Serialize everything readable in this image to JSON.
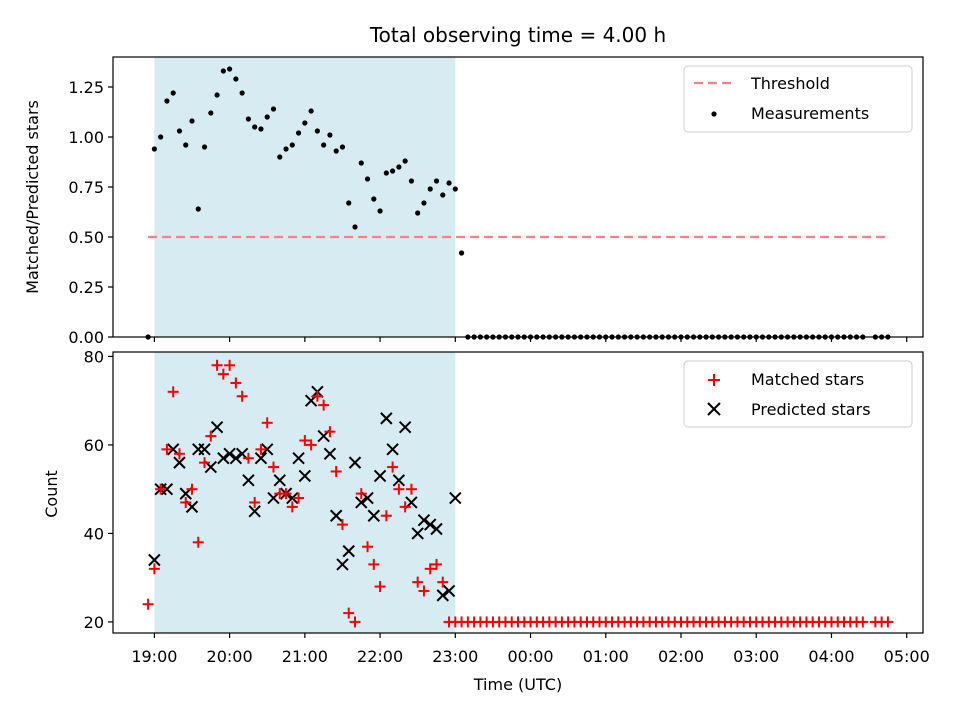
{
  "chart_data": {
    "title": "Total observing time = 4.00 h",
    "x_unit": "Time (UTC)",
    "xlabel": "Time (UTC)",
    "xlim": [
      "18:27",
      "05:13"
    ],
    "xticks": [
      "19:00",
      "20:00",
      "21:00",
      "22:00",
      "23:00",
      "00:00",
      "01:00",
      "02:00",
      "03:00",
      "04:00",
      "05:00"
    ],
    "shaded_interval": [
      "19:00",
      "23:00"
    ],
    "colors": {
      "shade": "#add8e6",
      "threshold": "#ff7f7f",
      "measurements": "#000000",
      "matched": "#ff0000",
      "predicted": "#000000"
    },
    "top": {
      "type": "scatter",
      "ylabel": "Matched/Predicted stars",
      "ylim": [
        0,
        1.4
      ],
      "yticks": [
        "0.00",
        "0.25",
        "0.50",
        "0.75",
        "1.00",
        "1.25"
      ],
      "legend_position": "top-right",
      "threshold": {
        "name": "Threshold",
        "value": 0.5,
        "from": "18:55",
        "to": "04:45"
      },
      "series": [
        {
          "name": "Measurements",
          "x": [
            "18:55",
            "19:00",
            "19:05",
            "19:10",
            "19:15",
            "19:20",
            "19:25",
            "19:30",
            "19:35",
            "19:40",
            "19:45",
            "19:50",
            "19:55",
            "20:00",
            "20:05",
            "20:10",
            "20:15",
            "20:20",
            "20:25",
            "20:30",
            "20:35",
            "20:40",
            "20:45",
            "20:50",
            "20:55",
            "21:00",
            "21:05",
            "21:10",
            "21:15",
            "21:20",
            "21:25",
            "21:30",
            "21:35",
            "21:40",
            "21:45",
            "21:50",
            "21:55",
            "22:00",
            "22:05",
            "22:10",
            "22:15",
            "22:20",
            "22:25",
            "22:30",
            "22:35",
            "22:40",
            "22:45",
            "22:50",
            "22:55",
            "23:00",
            "23:05",
            "23:10",
            "23:15",
            "23:20",
            "23:25",
            "23:30",
            "23:35",
            "23:40",
            "23:45",
            "23:50",
            "23:55",
            "00:00",
            "00:05",
            "00:10",
            "00:15",
            "00:20",
            "00:25",
            "00:30",
            "00:35",
            "00:40",
            "00:45",
            "00:50",
            "00:55",
            "01:00",
            "01:05",
            "01:10",
            "01:15",
            "01:20",
            "01:25",
            "01:30",
            "01:35",
            "01:40",
            "01:45",
            "01:50",
            "01:55",
            "02:00",
            "02:05",
            "02:10",
            "02:15",
            "02:20",
            "02:25",
            "02:30",
            "02:35",
            "02:40",
            "02:45",
            "02:50",
            "02:55",
            "03:00",
            "03:05",
            "03:10",
            "03:15",
            "03:20",
            "03:25",
            "03:30",
            "03:35",
            "03:40",
            "03:45",
            "03:50",
            "03:55",
            "04:00",
            "04:05",
            "04:10",
            "04:15",
            "04:20",
            "04:25",
            "04:35",
            "04:40",
            "04:45"
          ],
          "y": [
            0.0,
            0.94,
            1.0,
            1.18,
            1.22,
            1.03,
            0.96,
            1.08,
            0.64,
            0.95,
            1.12,
            1.21,
            1.33,
            1.34,
            1.29,
            1.22,
            1.09,
            1.05,
            1.04,
            1.1,
            1.14,
            0.9,
            0.94,
            0.96,
            1.02,
            1.07,
            1.13,
            1.03,
            0.96,
            1.01,
            0.93,
            0.95,
            0.67,
            0.55,
            0.87,
            0.79,
            0.69,
            0.63,
            0.82,
            0.83,
            0.85,
            0.88,
            0.78,
            0.62,
            0.67,
            0.74,
            0.78,
            0.71,
            0.77,
            0.74,
            0.42,
            0.0,
            0.0,
            0.0,
            0.0,
            0.0,
            0.0,
            0.0,
            0.0,
            0.0,
            0.0,
            0.0,
            0.0,
            0.0,
            0.0,
            0.0,
            0.0,
            0.0,
            0.0,
            0.0,
            0.0,
            0.0,
            0.0,
            0.0,
            0.0,
            0.0,
            0.0,
            0.0,
            0.0,
            0.0,
            0.0,
            0.0,
            0.0,
            0.0,
            0.0,
            0.0,
            0.0,
            0.0,
            0.0,
            0.0,
            0.0,
            0.0,
            0.0,
            0.0,
            0.0,
            0.0,
            0.0,
            0.0,
            0.0,
            0.0,
            0.0,
            0.0,
            0.0,
            0.0,
            0.0,
            0.0,
            0.0,
            0.0,
            0.0,
            0.0,
            0.0,
            0.0,
            0.0,
            0.0,
            0.0,
            0.0,
            0.0,
            0.0
          ]
        }
      ]
    },
    "bottom": {
      "type": "scatter",
      "ylabel": "Count",
      "ylim": [
        17.5,
        81
      ],
      "yticks": [
        "20",
        "40",
        "60",
        "80"
      ],
      "legend_position": "top-right",
      "series": [
        {
          "name": "Matched stars",
          "marker": "+",
          "x": [
            "18:55",
            "19:00",
            "19:05",
            "19:10",
            "19:15",
            "19:20",
            "19:25",
            "19:30",
            "19:35",
            "19:40",
            "19:45",
            "19:50",
            "19:55",
            "20:00",
            "20:05",
            "20:10",
            "20:15",
            "20:20",
            "20:25",
            "20:30",
            "20:35",
            "20:40",
            "20:45",
            "20:50",
            "20:55",
            "21:00",
            "21:05",
            "21:10",
            "21:15",
            "21:20",
            "21:25",
            "21:30",
            "21:35",
            "21:40",
            "21:45",
            "21:50",
            "21:55",
            "22:00",
            "22:05",
            "22:10",
            "22:15",
            "22:20",
            "22:25",
            "22:30",
            "22:35",
            "22:40",
            "22:45",
            "22:50",
            "22:55",
            "23:00",
            "23:05",
            "23:10",
            "23:15",
            "23:20",
            "23:25",
            "23:30",
            "23:35",
            "23:40",
            "23:45",
            "23:50",
            "23:55",
            "00:00",
            "00:05",
            "00:10",
            "00:15",
            "00:20",
            "00:25",
            "00:30",
            "00:35",
            "00:40",
            "00:45",
            "00:50",
            "00:55",
            "01:00",
            "01:05",
            "01:10",
            "01:15",
            "01:20",
            "01:25",
            "01:30",
            "01:35",
            "01:40",
            "01:45",
            "01:50",
            "01:55",
            "02:00",
            "02:05",
            "02:10",
            "02:15",
            "02:20",
            "02:25",
            "02:30",
            "02:35",
            "02:40",
            "02:45",
            "02:50",
            "02:55",
            "03:00",
            "03:05",
            "03:10",
            "03:15",
            "03:20",
            "03:25",
            "03:30",
            "03:35",
            "03:40",
            "03:45",
            "03:50",
            "03:55",
            "04:00",
            "04:05",
            "04:10",
            "04:15",
            "04:20",
            "04:25",
            "04:35",
            "04:40",
            "04:45"
          ],
          "y": [
            24,
            32,
            50,
            59,
            72,
            58,
            47,
            50,
            38,
            56,
            62,
            78,
            76,
            78,
            74,
            71,
            57,
            47,
            59,
            65,
            55,
            49,
            49,
            46,
            48,
            61,
            60,
            71,
            69,
            63,
            54,
            42,
            22,
            20,
            49,
            37,
            33,
            28,
            44,
            55,
            50,
            46,
            50,
            29,
            27,
            32,
            33,
            29,
            20,
            20,
            20,
            20,
            20,
            20,
            20,
            20,
            20,
            20,
            20,
            20,
            20,
            20,
            20,
            20,
            20,
            20,
            20,
            20,
            20,
            20,
            20,
            20,
            20,
            20,
            20,
            20,
            20,
            20,
            20,
            20,
            20,
            20,
            20,
            20,
            20,
            20,
            20,
            20,
            20,
            20,
            20,
            20,
            20,
            20,
            20,
            20,
            20,
            20,
            20,
            20,
            20,
            20,
            20,
            20,
            20,
            20,
            20,
            20,
            20,
            20,
            20,
            20,
            20,
            20,
            20,
            20,
            20,
            20
          ]
        },
        {
          "name": "Predicted stars",
          "marker": "x",
          "x": [
            "19:00",
            "19:05",
            "19:10",
            "19:15",
            "19:20",
            "19:25",
            "19:30",
            "19:35",
            "19:40",
            "19:45",
            "19:50",
            "19:55",
            "20:00",
            "20:05",
            "20:10",
            "20:15",
            "20:20",
            "20:25",
            "20:30",
            "20:35",
            "20:40",
            "20:45",
            "20:50",
            "20:55",
            "21:00",
            "21:05",
            "21:10",
            "21:15",
            "21:20",
            "21:25",
            "21:30",
            "21:35",
            "21:40",
            "21:45",
            "21:50",
            "21:55",
            "22:00",
            "22:05",
            "22:10",
            "22:15",
            "22:20",
            "22:25",
            "22:30",
            "22:35",
            "22:40",
            "22:45",
            "22:50",
            "22:55",
            "23:00",
            "23:05"
          ],
          "y": [
            34,
            50,
            50,
            59,
            56,
            49,
            46,
            59,
            59,
            55,
            64,
            57,
            58,
            57,
            58,
            52,
            45,
            57,
            59,
            48,
            52,
            49,
            48,
            57,
            53,
            70,
            72,
            62,
            58,
            44,
            33,
            36,
            56,
            47,
            48,
            44,
            53,
            66,
            59,
            52,
            64,
            47,
            40,
            43,
            42,
            41,
            26,
            27,
            48,
            null
          ],
          "y_note": ""
        }
      ]
    }
  }
}
